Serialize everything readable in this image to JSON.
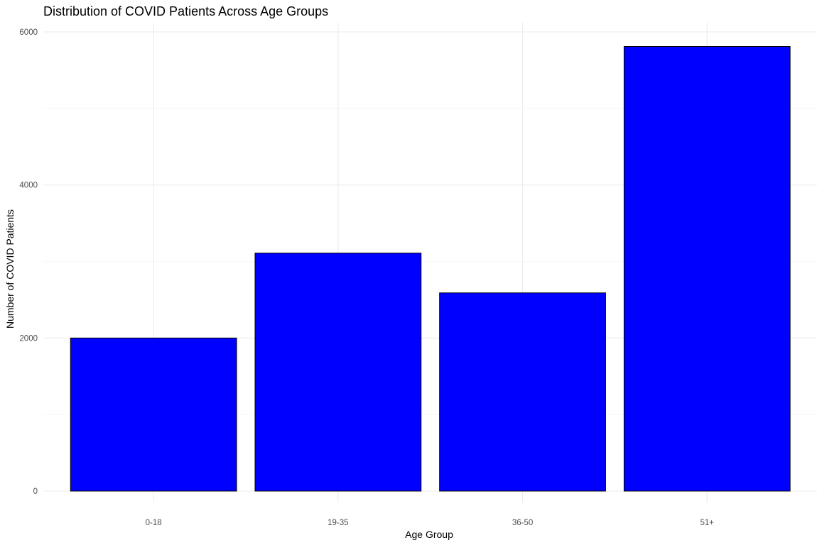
{
  "chart_data": {
    "type": "bar",
    "title": "Distribution of COVID Patients Across Age Groups",
    "xlabel": "Age Group",
    "ylabel": "Number of COVID Patients",
    "categories": [
      "0-18",
      "19-35",
      "36-50",
      "51+"
    ],
    "values": [
      2000,
      3110,
      2590,
      5810
    ],
    "ylim": [
      0,
      6000
    ],
    "yticks": [
      0,
      2000,
      4000,
      6000
    ],
    "ytick_labels": [
      "0",
      "2000",
      "4000",
      "6000"
    ],
    "grid": true,
    "legend": "none",
    "bar_fill": "#0000ff",
    "bar_outline": "#000000"
  }
}
